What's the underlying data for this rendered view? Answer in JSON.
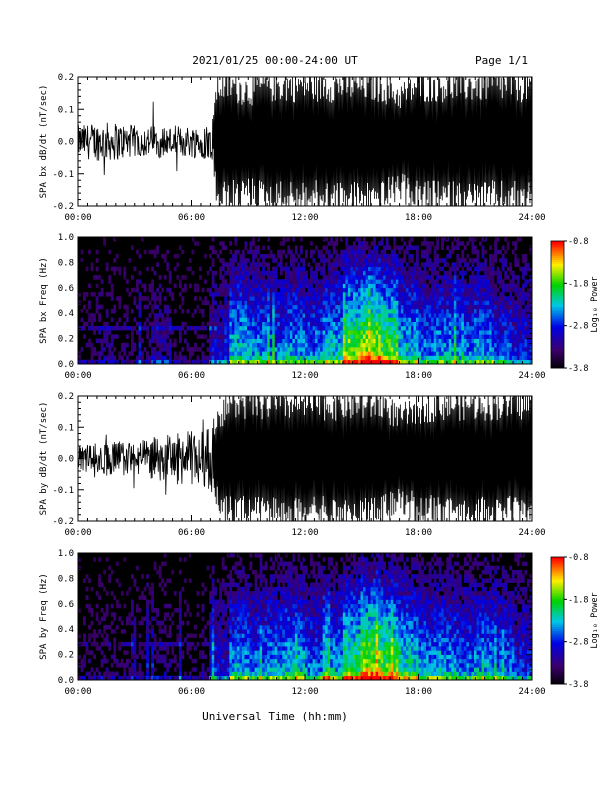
{
  "header": {
    "title": "2021/01/25  00:00-24:00 UT",
    "page": "Page 1/1"
  },
  "footer": {
    "xlabel": "Universal Time (hh:mm)"
  },
  "chart_data": [
    {
      "type": "line",
      "ylabel": "SPA bx dB/dt (nT/sec)",
      "xlim": [
        0,
        24
      ],
      "ylim": [
        -0.2,
        0.2
      ],
      "x_ticks": [
        "00:00",
        "06:00",
        "12:00",
        "18:00",
        "24:00"
      ],
      "y_ticks": [
        "-0.2",
        "-0.1",
        "0.0",
        "0.1",
        "0.2"
      ],
      "envelope": {
        "x_hours": [
          0,
          1,
          2,
          3,
          4,
          5,
          6,
          7,
          7.4,
          8,
          9,
          10,
          11,
          12,
          13,
          14,
          15,
          16,
          17,
          18,
          19,
          20,
          21,
          22,
          23,
          24
        ],
        "amplitude": [
          0.05,
          0.06,
          0.06,
          0.05,
          0.05,
          0.05,
          0.05,
          0.06,
          0.2,
          0.2,
          0.18,
          0.2,
          0.2,
          0.2,
          0.2,
          0.2,
          0.2,
          0.2,
          0.16,
          0.2,
          0.2,
          0.2,
          0.2,
          0.2,
          0.2,
          0.2
        ]
      }
    },
    {
      "type": "heatmap",
      "ylabel": "SPA bx Freq (Hz)",
      "colorbar_label": "Log₁₀ Power",
      "xlim": [
        0,
        24
      ],
      "ylim": [
        0,
        1.0
      ],
      "x_ticks": [
        "00:00",
        "06:00",
        "12:00",
        "18:00",
        "24:00"
      ],
      "y_ticks": [
        "0.0",
        "0.2",
        "0.4",
        "0.6",
        "0.8",
        "1.0"
      ],
      "colorbar_ticks": [
        "-0.8",
        "-1.8",
        "-2.8",
        "-3.8"
      ],
      "colorbar_range": [
        -3.8,
        -0.8
      ],
      "activity_by_hour": [
        0.1,
        0.15,
        0.1,
        0.1,
        0.2,
        0.1,
        0.1,
        0.3,
        0.55,
        0.5,
        0.45,
        0.5,
        0.45,
        0.55,
        0.75,
        0.85,
        0.75,
        0.55,
        0.45,
        0.5,
        0.45,
        0.5,
        0.4,
        0.35
      ]
    },
    {
      "type": "line",
      "ylabel": "SPA by dB/dt (nT/sec)",
      "xlim": [
        0,
        24
      ],
      "ylim": [
        -0.2,
        0.2
      ],
      "x_ticks": [
        "00:00",
        "06:00",
        "12:00",
        "18:00",
        "24:00"
      ],
      "y_ticks": [
        "-0.2",
        "-0.1",
        "0.0",
        "0.1",
        "0.2"
      ],
      "envelope": {
        "x_hours": [
          0,
          1,
          2,
          3,
          4,
          5,
          6,
          7,
          7.4,
          8,
          9,
          10,
          11,
          12,
          13,
          14,
          15,
          16,
          17,
          18,
          19,
          20,
          21,
          22,
          23,
          24
        ],
        "amplitude": [
          0.04,
          0.05,
          0.06,
          0.05,
          0.07,
          0.08,
          0.09,
          0.1,
          0.15,
          0.2,
          0.2,
          0.2,
          0.2,
          0.2,
          0.2,
          0.2,
          0.2,
          0.2,
          0.15,
          0.18,
          0.2,
          0.2,
          0.2,
          0.2,
          0.2,
          0.2
        ]
      }
    },
    {
      "type": "heatmap",
      "ylabel": "SPA by Freq (Hz)",
      "colorbar_label": "Log₁₀ Power",
      "xlim": [
        0,
        24
      ],
      "ylim": [
        0,
        1.0
      ],
      "x_ticks": [
        "00:00",
        "06:00",
        "12:00",
        "18:00",
        "24:00"
      ],
      "y_ticks": [
        "0.0",
        "0.2",
        "0.4",
        "0.6",
        "0.8",
        "1.0"
      ],
      "colorbar_ticks": [
        "-0.8",
        "-1.8",
        "-2.8",
        "-3.8"
      ],
      "colorbar_range": [
        -3.8,
        -0.8
      ],
      "activity_by_hour": [
        0.1,
        0.12,
        0.1,
        0.1,
        0.15,
        0.1,
        0.1,
        0.3,
        0.5,
        0.45,
        0.5,
        0.55,
        0.45,
        0.5,
        0.7,
        0.85,
        0.75,
        0.6,
        0.5,
        0.5,
        0.45,
        0.5,
        0.45,
        0.35
      ]
    }
  ]
}
